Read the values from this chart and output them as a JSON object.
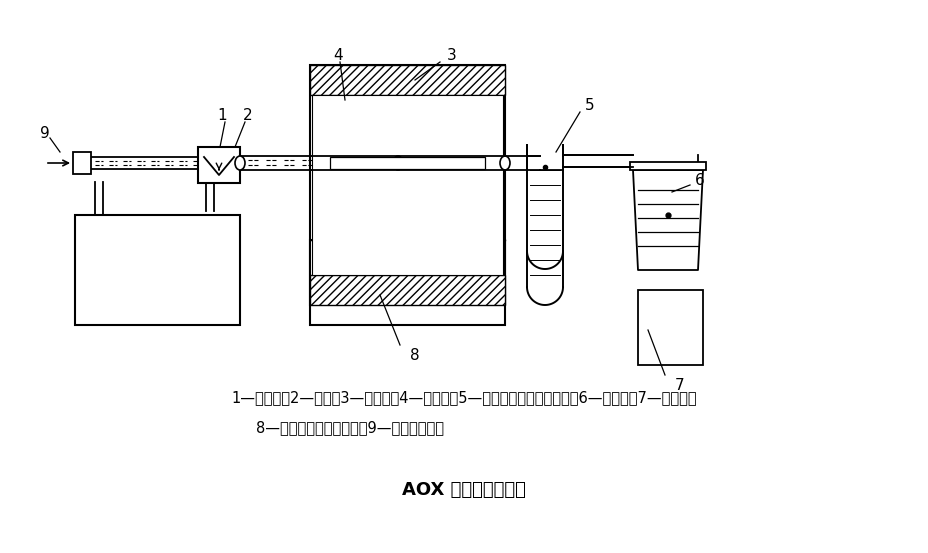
{
  "title": "AOX 测定装置原理图",
  "caption_line1": "1—进样口；2—样品；3—燃烧炉；4—燃烧管；5—干燥管（注入浓硫酸）；6—滴定池；7—搅拌器；",
  "caption_line2": "8—气流、温度控制单元；9—助燃气进口。",
  "bg_color": "#ffffff",
  "line_color": "#000000",
  "figsize": [
    9.29,
    5.53
  ],
  "dpi": 100
}
